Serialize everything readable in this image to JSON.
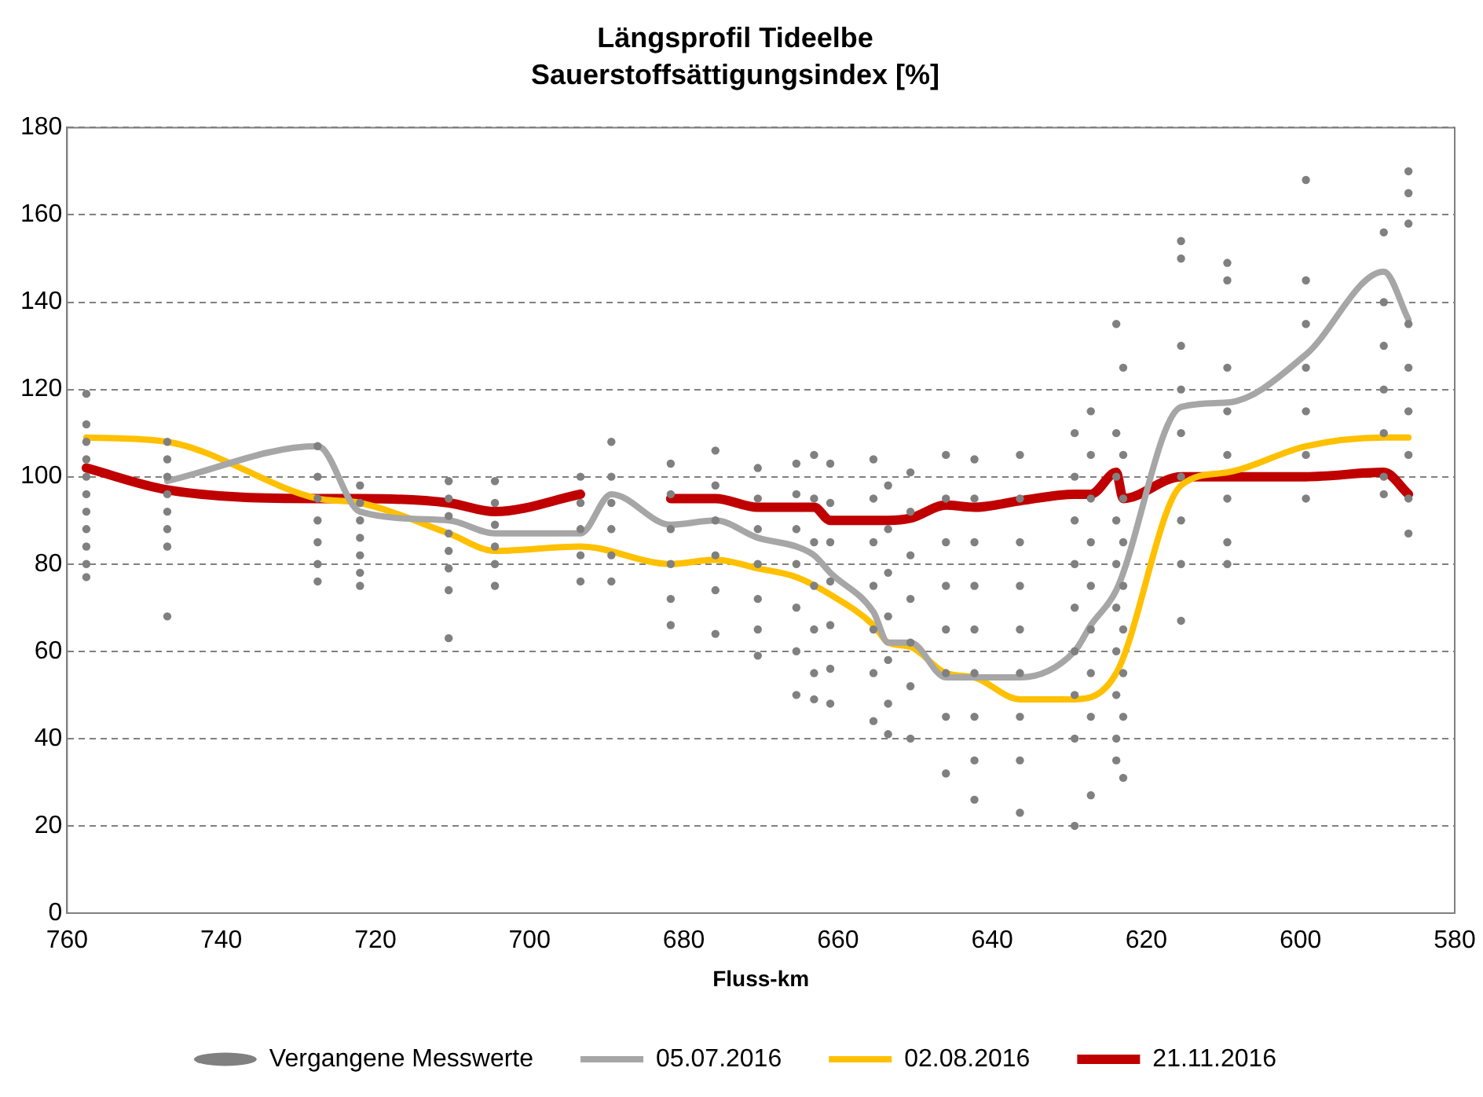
{
  "chart_data": {
    "type": "line",
    "title": "Längsprofil Tideelbe",
    "subtitle": "Sauerstoffsättigungsindex [%]",
    "xlabel": "Fluss-km",
    "xlim": [
      760,
      580
    ],
    "xticks": [
      760,
      740,
      720,
      700,
      680,
      660,
      640,
      620,
      600,
      580
    ],
    "ylim": [
      0,
      180
    ],
    "yticks": [
      0,
      20,
      40,
      60,
      80,
      100,
      120,
      140,
      160,
      180
    ],
    "grid": "y",
    "legend": "bottom",
    "marker": "none",
    "line_style": "solid",
    "series": [
      {
        "name": "Vergangene Messwerte",
        "type": "scatter",
        "marker": "circle",
        "color": "#808080",
        "x": [
          757.5,
          757.5,
          757.5,
          757.5,
          757.5,
          757.5,
          757.5,
          757.5,
          757.5,
          757.5,
          757.5,
          747,
          747,
          747,
          747,
          747,
          747,
          747,
          747,
          727.5,
          727.5,
          727.5,
          727.5,
          727.5,
          727.5,
          727.5,
          722,
          722,
          722,
          722,
          722,
          722,
          722,
          710.5,
          710.5,
          710.5,
          710.5,
          710.5,
          710.5,
          710.5,
          710.5,
          704.5,
          704.5,
          704.5,
          704.5,
          704.5,
          704.5,
          693.4,
          693.4,
          693.4,
          693.4,
          693.4,
          689.4,
          689.4,
          689.4,
          689.4,
          689.4,
          689.4,
          681.7,
          681.7,
          681.7,
          681.7,
          681.7,
          681.7,
          675.9,
          675.9,
          675.9,
          675.9,
          675.9,
          675.9,
          670.4,
          670.4,
          670.4,
          670.4,
          670.4,
          670.4,
          670.4,
          665.4,
          665.4,
          665.4,
          665.4,
          665.4,
          665.4,
          665.4,
          663.1,
          663.1,
          663.1,
          663.1,
          663.1,
          663.1,
          663.1,
          661,
          661,
          661,
          661,
          661,
          661,
          661,
          655.4,
          655.4,
          655.4,
          655.4,
          655.4,
          655.4,
          655.4,
          653.5,
          653.5,
          653.5,
          653.5,
          653.5,
          653.5,
          653.5,
          650.6,
          650.6,
          650.6,
          650.6,
          650.6,
          650.6,
          650.6,
          646,
          646,
          646,
          646,
          646,
          646,
          646,
          646,
          642.3,
          642.3,
          642.3,
          642.3,
          642.3,
          642.3,
          642.3,
          642.3,
          642.3,
          636.4,
          636.4,
          636.4,
          636.4,
          636.4,
          636.4,
          636.4,
          636.4,
          636.4,
          629.3,
          629.3,
          629.3,
          629.3,
          629.3,
          629.3,
          629.3,
          629.3,
          629.3,
          627.2,
          627.2,
          627.2,
          627.2,
          627.2,
          627.2,
          627.2,
          627.2,
          627.2,
          623.9,
          623.9,
          623.9,
          623.9,
          623.9,
          623.9,
          623.9,
          623.9,
          623.9,
          623.9,
          623,
          623,
          623,
          623,
          623,
          623,
          623,
          623,
          623,
          615.5,
          615.5,
          615.5,
          615.5,
          615.5,
          615.5,
          615.5,
          615.5,
          615.5,
          609.5,
          609.5,
          609.5,
          609.5,
          609.5,
          609.5,
          609.5,
          609.5,
          599.3,
          599.3,
          599.3,
          599.3,
          599.3,
          599.3,
          599.3,
          589.2,
          589.2,
          589.2,
          589.2,
          589.2,
          589.2,
          589.2,
          586,
          586,
          586,
          586,
          586,
          586,
          586,
          586,
          586
        ],
        "values": [
          119,
          112,
          108,
          104,
          100,
          96,
          92,
          88,
          84,
          80,
          77,
          108,
          104,
          100,
          96,
          92,
          88,
          84,
          68,
          107,
          100,
          95,
          90,
          85,
          80,
          76,
          98,
          94,
          90,
          86,
          82,
          78,
          75,
          99,
          95,
          91,
          87,
          83,
          79,
          74,
          63,
          99,
          94,
          89,
          84,
          80,
          75,
          100,
          94,
          88,
          82,
          76,
          108,
          100,
          94,
          88,
          82,
          76,
          103,
          96,
          88,
          80,
          72,
          66,
          106,
          98,
          90,
          82,
          74,
          64,
          102,
          95,
          88,
          80,
          72,
          65,
          59,
          103,
          96,
          88,
          80,
          70,
          60,
          50,
          105,
          95,
          85,
          75,
          65,
          55,
          49,
          103,
          94,
          85,
          76,
          66,
          56,
          48,
          104,
          95,
          85,
          75,
          65,
          55,
          44,
          98,
          88,
          78,
          68,
          58,
          48,
          41,
          101,
          92,
          82,
          72,
          62,
          52,
          40,
          105,
          95,
          85,
          75,
          65,
          55,
          45,
          32,
          104,
          95,
          85,
          75,
          65,
          55,
          45,
          35,
          26,
          105,
          95,
          85,
          75,
          65,
          55,
          45,
          35,
          23,
          110,
          100,
          90,
          80,
          70,
          60,
          50,
          40,
          20,
          115,
          105,
          95,
          85,
          75,
          65,
          55,
          45,
          27,
          135,
          110,
          100,
          90,
          80,
          70,
          60,
          50,
          40,
          35,
          125,
          105,
          95,
          85,
          75,
          65,
          55,
          45,
          31,
          154,
          150,
          130,
          120,
          110,
          100,
          90,
          80,
          67,
          149,
          145,
          125,
          115,
          105,
          95,
          85,
          80,
          168,
          145,
          135,
          125,
          115,
          105,
          95,
          156,
          140,
          130,
          120,
          110,
          100,
          96,
          170,
          165,
          158,
          135,
          125,
          115,
          105,
          95,
          87
        ]
      },
      {
        "name": "05.07.2016",
        "color": "#a6a6a6",
        "x": [
          747,
          727.5,
          722,
          710.5,
          704.5,
          693.4,
          689.4,
          681.7,
          675.9,
          670.4,
          665.4,
          663.1,
          661,
          655.4,
          653.5,
          650.6,
          646,
          642.3,
          636.4,
          629.3,
          627.2,
          623.9,
          615.5,
          609.5,
          599.3,
          589.2,
          586
        ],
        "values": [
          99,
          107,
          92,
          90,
          87,
          87,
          96,
          89,
          90,
          86,
          84,
          82,
          78,
          69,
          62,
          62,
          54,
          54,
          54,
          60,
          66,
          74,
          116,
          117,
          128,
          147,
          136
        ]
      },
      {
        "name": "02.08.2016",
        "color": "#ffc000",
        "x": [
          757.5,
          747,
          727.5,
          722,
          710.5,
          704.5,
          693.4,
          681.7,
          675.9,
          670.4,
          665.4,
          661,
          655.4,
          653.5,
          650.6,
          646,
          642.3,
          636.4,
          629.3,
          623.9,
          615.5,
          609.5,
          599.3,
          589.2,
          586
        ],
        "values": [
          109,
          108,
          95,
          94,
          87,
          83,
          84,
          80,
          81,
          79,
          77,
          73,
          66,
          62,
          61,
          55,
          54,
          49,
          49,
          55,
          98,
          101,
          107,
          109,
          109
        ]
      },
      {
        "name": "21.11.2016",
        "color": "#c00000",
        "x": [
          757.5,
          747,
          727.5,
          722,
          710.5,
          704.5,
          693.4,
          689.4,
          681.7,
          675.9,
          670.4,
          665.4,
          663.1,
          661,
          655.4,
          653.5,
          650.6,
          646,
          642.3,
          636.4,
          629.3,
          627.2,
          623.9,
          623,
          615.5,
          609.5,
          599.3,
          589.2,
          586
        ],
        "values": [
          102,
          97,
          95,
          95,
          94,
          92,
          96,
          null,
          95,
          95,
          93,
          93,
          93,
          90,
          90,
          90,
          90.5,
          93.5,
          93,
          94.5,
          96,
          96,
          101,
          95,
          100,
          100,
          100,
          101,
          96
        ]
      }
    ]
  }
}
